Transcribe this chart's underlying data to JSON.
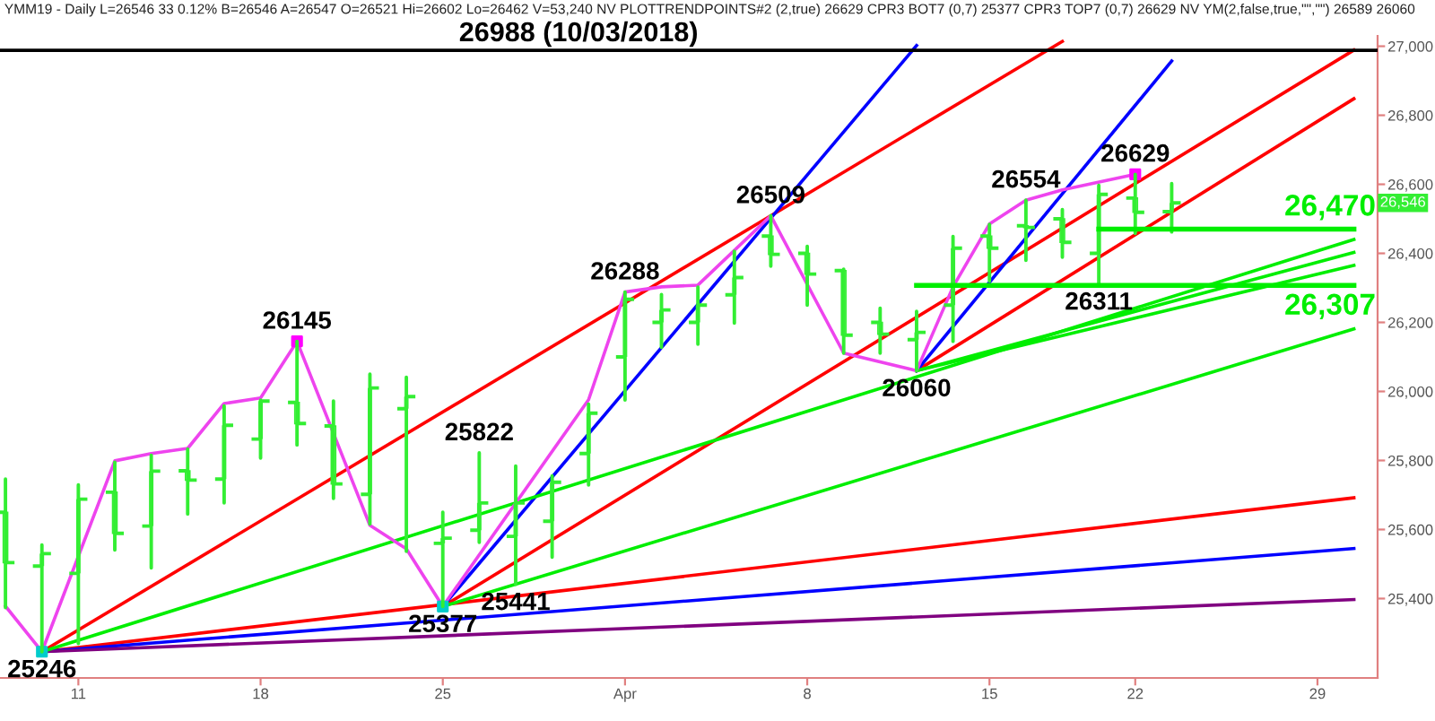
{
  "chart_data": {
    "type": "candlestick",
    "title": "YMM19 - Daily L=26546 33 0.12% B=26546 A=26547 O=26521 Hi=26602 Lo=26462 V=53,240 NV PLOTTRENDPOINTS#2 (2,true) 26629 CPR3 BOT7 (0,7) 25377 CPR3 TOP7 (0,7) 26629 NV YM(2,false,true,\"\",\"\") 26589 26060",
    "color": "#33ee33",
    "categories": [
      null,
      null,
      "11",
      null,
      null,
      null,
      null,
      "18",
      null,
      null,
      null,
      null,
      "25",
      null,
      null,
      null,
      null,
      "Apr",
      null,
      null,
      null,
      null,
      "8",
      null,
      null,
      null,
      null,
      "15",
      null,
      null,
      null,
      "22",
      null,
      null,
      null,
      null,
      "29",
      null
    ],
    "ohlc": [
      [
        25650,
        25746,
        25374,
        25504
      ],
      [
        25494,
        25555,
        25246,
        25530
      ],
      [
        25473,
        25729,
        25270,
        25688
      ],
      [
        25708,
        25795,
        25541,
        25589
      ],
      [
        25610,
        25815,
        25489,
        25769
      ],
      [
        25770,
        25833,
        25645,
        25743
      ],
      [
        25746,
        25958,
        25677,
        25902
      ],
      [
        25862,
        25975,
        25807,
        25972
      ],
      [
        25968,
        26145,
        25845,
        25907
      ],
      [
        25900,
        25972,
        25690,
        25732
      ],
      [
        25702,
        26050,
        25616,
        26010
      ],
      [
        25950,
        26041,
        25537,
        25985
      ],
      [
        25560,
        25650,
        25377,
        25575
      ],
      [
        25598,
        25822,
        25563,
        25677
      ],
      [
        25580,
        25784,
        25441,
        25677
      ],
      [
        25624,
        25755,
        25520,
        25737
      ],
      [
        25820,
        25963,
        25729,
        25937
      ],
      [
        26100,
        26288,
        25975,
        26267
      ],
      [
        26200,
        26281,
        26128,
        26236
      ],
      [
        26200,
        26302,
        26137,
        26250
      ],
      [
        26280,
        26406,
        26198,
        26330
      ],
      [
        26450,
        26509,
        26363,
        26397
      ],
      [
        26400,
        26420,
        26250,
        26340
      ],
      [
        26350,
        26354,
        26111,
        26163
      ],
      [
        26200,
        26241,
        26111,
        26166
      ],
      [
        26150,
        26232,
        26060,
        26171
      ],
      [
        26250,
        26449,
        26145,
        26415
      ],
      [
        26450,
        26484,
        26320,
        26415
      ],
      [
        26480,
        26554,
        26380,
        26475
      ],
      [
        26500,
        26527,
        26389,
        26432
      ],
      [
        26400,
        26597,
        26311,
        26571
      ],
      [
        26560,
        26629,
        26458,
        26519
      ],
      [
        26521,
        26602,
        26462,
        26546
      ],
      null,
      null,
      null,
      null,
      null
    ],
    "series": [
      {
        "type": "line",
        "color": "#ff0000",
        "values": [
          null,
          25246,
          null,
          null,
          null,
          null,
          null,
          null,
          null,
          null,
          null,
          null,
          null,
          null,
          null,
          null,
          null,
          null,
          null,
          null,
          null,
          null,
          null,
          null,
          null,
          null,
          null,
          null,
          null,
          27014,
          null,
          null,
          null,
          null,
          null,
          null,
          null,
          null
        ]
      },
      {
        "type": "line",
        "color": "#ff0000",
        "values": [
          null,
          null,
          null,
          null,
          null,
          null,
          null,
          null,
          null,
          null,
          null,
          null,
          25377,
          null,
          null,
          null,
          null,
          null,
          null,
          null,
          null,
          null,
          null,
          null,
          null,
          null,
          null,
          null,
          null,
          null,
          null,
          null,
          null,
          null,
          null,
          null,
          null,
          26989
        ]
      },
      {
        "type": "line",
        "color": "#ff0000",
        "values": [
          null,
          null,
          null,
          null,
          null,
          null,
          null,
          null,
          null,
          null,
          null,
          null,
          null,
          null,
          null,
          null,
          null,
          null,
          null,
          null,
          null,
          null,
          null,
          null,
          null,
          26060,
          null,
          null,
          null,
          null,
          null,
          null,
          null,
          null,
          null,
          null,
          null,
          26848
        ]
      },
      {
        "type": "line",
        "color": "#ff0000",
        "values": [
          null,
          25246,
          null,
          null,
          null,
          null,
          null,
          null,
          null,
          null,
          null,
          null,
          null,
          null,
          null,
          null,
          null,
          null,
          null,
          null,
          null,
          null,
          null,
          null,
          null,
          null,
          null,
          null,
          null,
          null,
          null,
          null,
          null,
          null,
          null,
          null,
          null,
          25692
        ]
      },
      {
        "type": "line",
        "color": "#0000ff",
        "values": [
          null,
          null,
          null,
          null,
          null,
          null,
          null,
          null,
          null,
          null,
          null,
          null,
          25377,
          null,
          null,
          null,
          null,
          null,
          null,
          null,
          null,
          null,
          null,
          null,
          null,
          27002,
          null,
          null,
          null,
          null,
          null,
          null,
          null,
          null,
          null,
          null,
          null,
          null
        ]
      },
      {
        "type": "line",
        "color": "#0000ff",
        "values": [
          null,
          null,
          null,
          null,
          null,
          null,
          null,
          null,
          null,
          null,
          null,
          null,
          null,
          null,
          null,
          null,
          null,
          null,
          null,
          null,
          null,
          null,
          null,
          null,
          null,
          26060,
          null,
          null,
          null,
          null,
          null,
          null,
          26957,
          null,
          null,
          null,
          null,
          null
        ]
      },
      {
        "type": "line",
        "color": "#0000ff",
        "values": [
          null,
          25246,
          null,
          null,
          null,
          null,
          null,
          null,
          null,
          null,
          null,
          null,
          null,
          null,
          null,
          null,
          null,
          null,
          null,
          null,
          null,
          null,
          null,
          null,
          null,
          null,
          null,
          null,
          null,
          null,
          null,
          null,
          null,
          null,
          null,
          null,
          null,
          25545
        ]
      },
      {
        "type": "line",
        "color": "#800080",
        "values": [
          null,
          25246,
          null,
          null,
          null,
          null,
          null,
          null,
          null,
          null,
          null,
          null,
          null,
          null,
          null,
          null,
          null,
          null,
          null,
          null,
          null,
          null,
          null,
          null,
          null,
          null,
          null,
          null,
          null,
          null,
          null,
          null,
          null,
          null,
          null,
          null,
          null,
          25397
        ]
      },
      {
        "type": "line",
        "color": "#00ee00",
        "values": [
          null,
          25246,
          null,
          null,
          null,
          null,
          null,
          null,
          null,
          null,
          null,
          null,
          null,
          null,
          null,
          null,
          null,
          null,
          null,
          null,
          null,
          null,
          null,
          null,
          null,
          null,
          null,
          null,
          null,
          null,
          null,
          null,
          null,
          null,
          null,
          null,
          null,
          26440
        ]
      },
      {
        "type": "line",
        "color": "#00ee00",
        "values": [
          null,
          null,
          null,
          null,
          null,
          null,
          null,
          null,
          null,
          null,
          null,
          null,
          25377,
          null,
          null,
          null,
          null,
          null,
          null,
          null,
          null,
          null,
          null,
          null,
          null,
          null,
          null,
          null,
          null,
          null,
          null,
          null,
          null,
          null,
          null,
          null,
          null,
          26181
        ]
      },
      {
        "type": "line",
        "color": "#00ee00",
        "values": [
          null,
          null,
          null,
          null,
          null,
          null,
          null,
          null,
          null,
          null,
          null,
          null,
          null,
          null,
          null,
          null,
          null,
          null,
          null,
          null,
          null,
          null,
          null,
          null,
          null,
          26060,
          null,
          null,
          null,
          null,
          null,
          null,
          null,
          null,
          null,
          null,
          null,
          26403
        ]
      },
      {
        "type": "line",
        "color": "#00ee00",
        "values": [
          null,
          null,
          null,
          null,
          null,
          null,
          null,
          null,
          null,
          null,
          null,
          null,
          null,
          null,
          null,
          null,
          null,
          null,
          null,
          null,
          null,
          null,
          null,
          null,
          null,
          26060,
          null,
          null,
          null,
          null,
          null,
          null,
          null,
          null,
          null,
          null,
          null,
          26365
        ]
      },
      {
        "type": "line",
        "name": "26,470",
        "color": "#00ee00",
        "values": [
          null,
          null,
          null,
          null,
          null,
          null,
          null,
          null,
          null,
          null,
          null,
          null,
          null,
          null,
          null,
          null,
          null,
          null,
          null,
          null,
          null,
          null,
          null,
          null,
          null,
          null,
          null,
          null,
          null,
          null,
          26470,
          26470,
          26470,
          26470,
          26470,
          26470,
          26470,
          26470
        ]
      },
      {
        "type": "line",
        "name": "26,307",
        "color": "#00ee00",
        "values": [
          null,
          null,
          null,
          null,
          null,
          null,
          null,
          null,
          null,
          null,
          null,
          null,
          null,
          null,
          null,
          null,
          null,
          null,
          null,
          null,
          null,
          null,
          null,
          null,
          null,
          26307,
          26307,
          26307,
          26307,
          26307,
          26307,
          26307,
          26307,
          26307,
          26307,
          26307,
          26307,
          26307
        ]
      },
      {
        "type": "line",
        "color": "#ee44ee",
        "values": [
          25378,
          25246,
          null,
          25799,
          25820,
          25835,
          25965,
          25981,
          26145,
          null,
          25612,
          25544,
          25377,
          null,
          null,
          null,
          25976,
          26288,
          26303,
          26308,
          null,
          26509,
          null,
          26111,
          null,
          26060,
          26303,
          26485,
          26554,
          26584,
          null,
          26629,
          null,
          null,
          null,
          null,
          null,
          null
        ]
      },
      {
        "type": "scatter",
        "color": "#ff00ff",
        "values": [
          null,
          null,
          null,
          null,
          null,
          null,
          null,
          null,
          26145,
          null,
          null,
          null,
          null,
          null,
          null,
          null,
          null,
          null,
          null,
          null,
          null,
          null,
          null,
          null,
          null,
          null,
          null,
          null,
          null,
          null,
          null,
          26629,
          null,
          null,
          null,
          null,
          null,
          null
        ]
      },
      {
        "type": "scatter",
        "color": "#00cccc",
        "values": [
          null,
          25246,
          null,
          null,
          null,
          null,
          null,
          null,
          null,
          null,
          null,
          null,
          25377,
          null,
          null,
          null,
          null,
          null,
          null,
          null,
          null,
          null,
          null,
          null,
          null,
          null,
          null,
          null,
          null,
          null,
          null,
          null,
          null,
          null,
          null,
          null,
          null,
          null
        ]
      }
    ],
    "ref_lines": [
      {
        "axis": "y",
        "value": 26988,
        "label": "26988 (10/03/2018)",
        "color": "#000000"
      }
    ],
    "annotations": [
      {
        "text": "25246",
        "y": 25246
      },
      {
        "text": "26145",
        "y": 26145
      },
      {
        "text": "25822",
        "y": 25822
      },
      {
        "text": "25441",
        "y": 25441
      },
      {
        "text": "25377",
        "y": 25377
      },
      {
        "text": "26288",
        "y": 26288
      },
      {
        "text": "26509",
        "y": 26509
      },
      {
        "text": "26060",
        "y": 26060
      },
      {
        "text": "26554",
        "y": 26554
      },
      {
        "text": "26311",
        "y": 26311
      },
      {
        "text": "26629",
        "y": 26629
      },
      "26,546"
    ],
    "ylim": [
      25170,
      27030
    ],
    "yticks": [
      {
        "value": 25400,
        "label": "25,400"
      },
      {
        "value": 25600,
        "label": "25,600"
      },
      {
        "value": 25800,
        "label": "25,800"
      },
      {
        "value": 26000,
        "label": "26,000"
      },
      {
        "value": 26200,
        "label": "26,200"
      },
      {
        "value": 26400,
        "label": "26,400"
      },
      {
        "value": 26600,
        "label": "26,600"
      },
      {
        "value": 26800,
        "label": "26,800"
      },
      {
        "value": 27000,
        "label": "27,000"
      }
    ],
    "grid": false
  }
}
